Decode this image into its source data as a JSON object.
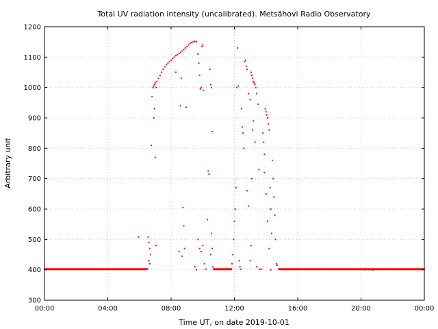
{
  "chart_data": {
    "type": "scatter",
    "title": "Total UV radiation intensity (uncalibrated). Metsähovi Radio Observatory",
    "xlabel": "Time UT, on date 2019-10-01",
    "ylabel": "Arbitrary unit",
    "x_unit": "hours UT",
    "xlim": [
      0,
      24
    ],
    "ylim": [
      300,
      1200
    ],
    "x_ticks": [
      {
        "value": 0,
        "label": "00:00"
      },
      {
        "value": 4,
        "label": "04:00"
      },
      {
        "value": 8,
        "label": "08:00"
      },
      {
        "value": 12,
        "label": "12:00"
      },
      {
        "value": 16,
        "label": "16:00"
      },
      {
        "value": 20,
        "label": "20:00"
      },
      {
        "value": 24,
        "label": "00:00"
      }
    ],
    "y_ticks": [
      300,
      400,
      500,
      600,
      700,
      800,
      900,
      1000,
      1100,
      1200
    ],
    "grid": true,
    "color": "#ff0000",
    "series": [
      {
        "points": [
          [
            0.0,
            402
          ],
          [
            0.25,
            402
          ],
          [
            0.5,
            402
          ],
          [
            0.75,
            402
          ],
          [
            1.0,
            402
          ],
          [
            1.25,
            402
          ],
          [
            1.5,
            402
          ],
          [
            1.75,
            402
          ],
          [
            2.0,
            402
          ],
          [
            2.25,
            402
          ],
          [
            2.5,
            402
          ],
          [
            2.75,
            402
          ],
          [
            3.0,
            402
          ],
          [
            3.25,
            402
          ],
          [
            3.5,
            402
          ],
          [
            3.75,
            402
          ],
          [
            4.0,
            402
          ],
          [
            4.25,
            402
          ],
          [
            4.5,
            402
          ],
          [
            4.75,
            402
          ],
          [
            5.0,
            402
          ],
          [
            5.25,
            402
          ],
          [
            5.5,
            402
          ],
          [
            5.75,
            402
          ],
          [
            6.0,
            402
          ],
          [
            6.25,
            402
          ],
          [
            6.5,
            403
          ],
          [
            5.95,
            508
          ],
          [
            6.55,
            508
          ],
          [
            6.6,
            490
          ],
          [
            6.65,
            470
          ],
          [
            6.7,
            450
          ],
          [
            6.6,
            430
          ],
          [
            6.65,
            420
          ],
          [
            6.75,
            810
          ],
          [
            6.8,
            970
          ],
          [
            6.85,
            1000
          ],
          [
            6.9,
            1005
          ],
          [
            6.95,
            1010
          ],
          [
            7.0,
            1015
          ],
          [
            7.05,
            1000
          ],
          [
            6.9,
            900
          ],
          [
            6.95,
            930
          ],
          [
            7.0,
            770
          ],
          [
            7.05,
            480
          ],
          [
            7.1,
            1020
          ],
          [
            7.2,
            1030
          ],
          [
            7.3,
            1040
          ],
          [
            7.4,
            1050
          ],
          [
            7.5,
            1060
          ],
          [
            7.6,
            1068
          ],
          [
            7.7,
            1075
          ],
          [
            7.8,
            1080
          ],
          [
            7.9,
            1085
          ],
          [
            8.0,
            1090
          ],
          [
            8.1,
            1095
          ],
          [
            8.2,
            1100
          ],
          [
            8.3,
            1105
          ],
          [
            8.4,
            1108
          ],
          [
            8.5,
            1112
          ],
          [
            8.6,
            1115
          ],
          [
            8.7,
            1120
          ],
          [
            8.8,
            1125
          ],
          [
            8.9,
            1130
          ],
          [
            9.0,
            1135
          ],
          [
            9.1,
            1140
          ],
          [
            9.2,
            1145
          ],
          [
            9.3,
            1148
          ],
          [
            9.4,
            1150
          ],
          [
            9.5,
            1152
          ],
          [
            9.6,
            1150
          ],
          [
            8.3,
            1050
          ],
          [
            8.6,
            940
          ],
          [
            8.65,
            1030
          ],
          [
            8.75,
            605
          ],
          [
            8.8,
            545
          ],
          [
            8.85,
            470
          ],
          [
            8.7,
            445
          ],
          [
            8.5,
            460
          ],
          [
            8.95,
            935
          ],
          [
            9.5,
            410
          ],
          [
            9.6,
            400
          ],
          [
            9.7,
            1110
          ],
          [
            9.75,
            1080
          ],
          [
            9.8,
            1040
          ],
          [
            9.85,
            995
          ],
          [
            9.9,
            1000
          ],
          [
            9.95,
            1135
          ],
          [
            10.0,
            1140
          ],
          [
            10.05,
            990
          ],
          [
            10.0,
            480
          ],
          [
            9.9,
            460
          ],
          [
            9.7,
            500
          ],
          [
            9.8,
            470
          ],
          [
            10.1,
            420
          ],
          [
            10.2,
            402
          ],
          [
            10.3,
            565
          ],
          [
            10.35,
            725
          ],
          [
            10.4,
            715
          ],
          [
            10.45,
            1060
          ],
          [
            10.5,
            1010
          ],
          [
            10.55,
            1000
          ],
          [
            10.6,
            855
          ],
          [
            10.6,
            470
          ],
          [
            10.55,
            520
          ],
          [
            10.5,
            450
          ],
          [
            10.65,
            410
          ],
          [
            10.7,
            402
          ],
          [
            10.8,
            402
          ],
          [
            11.0,
            402
          ],
          [
            11.2,
            402
          ],
          [
            11.4,
            402
          ],
          [
            11.6,
            402
          ],
          [
            11.8,
            402
          ],
          [
            11.85,
            420
          ],
          [
            11.9,
            450
          ],
          [
            11.95,
            500
          ],
          [
            12.0,
            560
          ],
          [
            12.05,
            600
          ],
          [
            12.1,
            670
          ],
          [
            12.15,
            1000
          ],
          [
            12.2,
            1130
          ],
          [
            12.25,
            1005
          ],
          [
            12.3,
            430
          ],
          [
            12.35,
            410
          ],
          [
            12.4,
            402
          ],
          [
            12.45,
            930
          ],
          [
            12.5,
            870
          ],
          [
            12.55,
            850
          ],
          [
            12.6,
            800
          ],
          [
            12.65,
            1085
          ],
          [
            12.7,
            1090
          ],
          [
            12.75,
            1070
          ],
          [
            12.8,
            1060
          ],
          [
            12.9,
            980
          ],
          [
            13.0,
            960
          ],
          [
            13.05,
            1050
          ],
          [
            13.1,
            1040
          ],
          [
            13.15,
            1030
          ],
          [
            13.2,
            1020
          ],
          [
            13.25,
            1015
          ],
          [
            13.3,
            1010
          ],
          [
            13.35,
            1000
          ],
          [
            13.4,
            980
          ],
          [
            12.8,
            660
          ],
          [
            12.9,
            610
          ],
          [
            13.0,
            430
          ],
          [
            13.05,
            480
          ],
          [
            13.1,
            700
          ],
          [
            13.15,
            860
          ],
          [
            13.2,
            890
          ],
          [
            13.3,
            820
          ],
          [
            13.4,
            410
          ],
          [
            13.5,
            945
          ],
          [
            13.55,
            730
          ],
          [
            13.6,
            402
          ],
          [
            13.7,
            402
          ],
          [
            13.8,
            850
          ],
          [
            13.85,
            820
          ],
          [
            13.9,
            780
          ],
          [
            13.95,
            930
          ],
          [
            14.0,
            920
          ],
          [
            14.05,
            910
          ],
          [
            14.1,
            900
          ],
          [
            14.15,
            880
          ],
          [
            14.2,
            860
          ],
          [
            14.25,
            670
          ],
          [
            14.3,
            600
          ],
          [
            14.35,
            520
          ],
          [
            14.4,
            760
          ],
          [
            14.45,
            700
          ],
          [
            14.5,
            640
          ],
          [
            14.55,
            580
          ],
          [
            14.6,
            500
          ],
          [
            14.65,
            420
          ],
          [
            14.7,
            415
          ],
          [
            13.9,
            720
          ],
          [
            14.0,
            650
          ],
          [
            14.1,
            560
          ],
          [
            14.2,
            470
          ],
          [
            14.3,
            400
          ],
          [
            14.8,
            403
          ],
          [
            15.0,
            402
          ],
          [
            15.25,
            402
          ],
          [
            15.5,
            402
          ],
          [
            15.75,
            402
          ],
          [
            16.0,
            402
          ],
          [
            16.25,
            402
          ],
          [
            16.5,
            402
          ],
          [
            16.75,
            402
          ],
          [
            17.0,
            402
          ],
          [
            17.25,
            402
          ],
          [
            17.5,
            401
          ],
          [
            17.75,
            402
          ],
          [
            18.0,
            402
          ],
          [
            18.25,
            402
          ],
          [
            18.5,
            402
          ],
          [
            18.75,
            402
          ],
          [
            19.0,
            402
          ],
          [
            19.25,
            401
          ],
          [
            19.5,
            401
          ],
          [
            19.75,
            402
          ],
          [
            20.0,
            401
          ],
          [
            20.25,
            400
          ],
          [
            20.5,
            401
          ],
          [
            20.75,
            399
          ],
          [
            21.0,
            401
          ],
          [
            21.25,
            403
          ],
          [
            21.5,
            401
          ],
          [
            21.75,
            402
          ],
          [
            22.0,
            402
          ],
          [
            22.25,
            401
          ],
          [
            22.5,
            402
          ],
          [
            22.75,
            402
          ],
          [
            23.0,
            402
          ],
          [
            23.25,
            402
          ],
          [
            23.5,
            402
          ],
          [
            23.75,
            402
          ],
          [
            24.0,
            402
          ]
        ]
      }
    ]
  }
}
